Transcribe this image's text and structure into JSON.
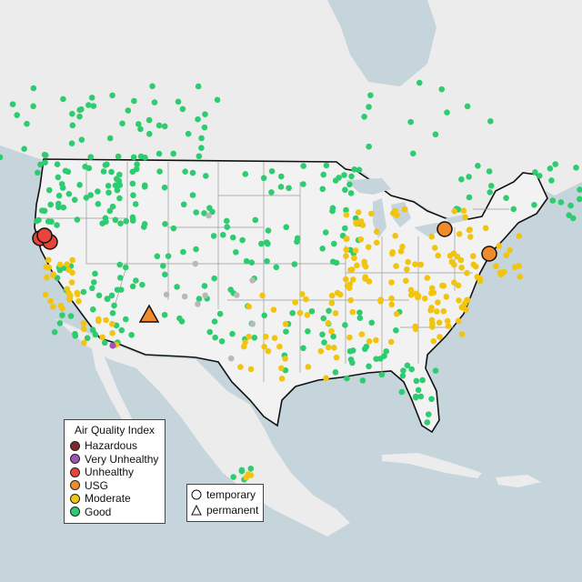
{
  "legend": {
    "title": "Air Quality Index",
    "items": [
      {
        "label": "Hazardous",
        "color": "#7e2a2a"
      },
      {
        "label": "Very Unhealthy",
        "color": "#9b55b5"
      },
      {
        "label": "Unhealthy",
        "color": "#e8443a"
      },
      {
        "label": "USG",
        "color": "#f08a2a"
      },
      {
        "label": "Moderate",
        "color": "#f1c40f"
      },
      {
        "label": "Good",
        "color": "#2ecc71"
      }
    ]
  },
  "monitor_types": {
    "items": [
      {
        "label": "temporary",
        "symbol": "circle"
      },
      {
        "label": "permanent",
        "symbol": "triangle"
      }
    ]
  },
  "colors": {
    "water": "#c6d4dc",
    "land": "#ececec",
    "us_land": "#f2f2f2",
    "border": "#111111",
    "state_lines": "#9a9a9a",
    "no_data": "#b8b8b8"
  }
}
